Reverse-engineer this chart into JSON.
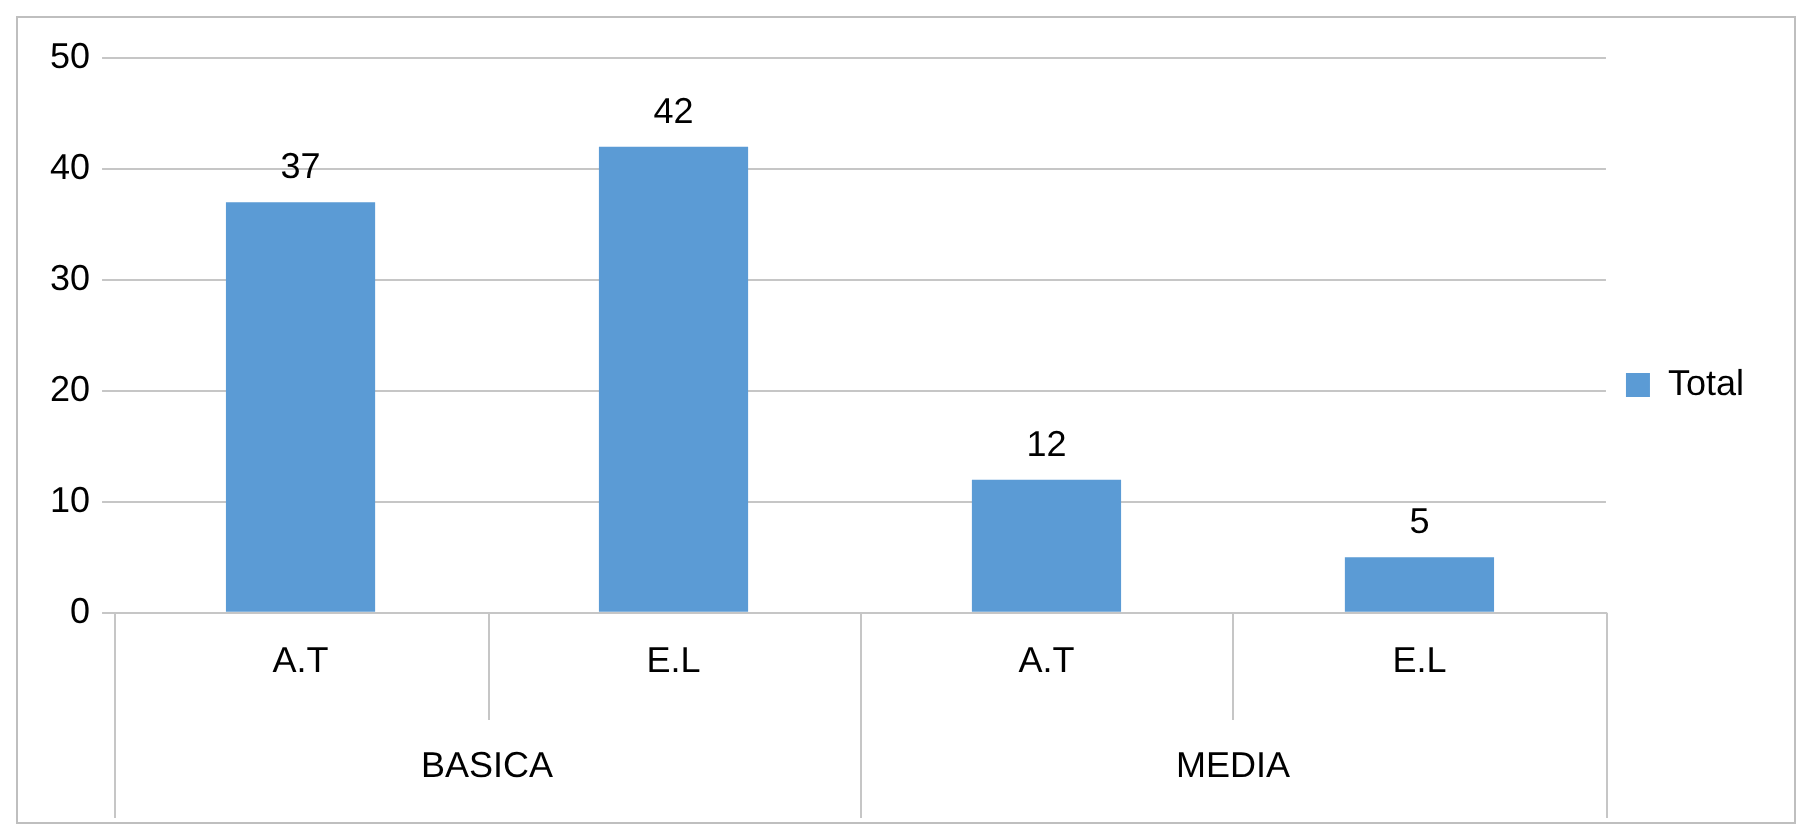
{
  "chart_data": {
    "type": "bar",
    "categories": [
      "A.T",
      "E.L",
      "A.T",
      "E.L"
    ],
    "series": [
      {
        "name": "Total",
        "color": "#5b9bd5",
        "values": [
          37,
          42,
          12,
          5
        ]
      }
    ],
    "annotations": [
      "BASICA",
      "MEDIA"
    ],
    "ylim": [
      0,
      50
    ],
    "yticks": [
      0,
      10,
      20,
      30,
      40,
      50
    ],
    "grid": "y",
    "legend": "right",
    "data_labels": true
  }
}
